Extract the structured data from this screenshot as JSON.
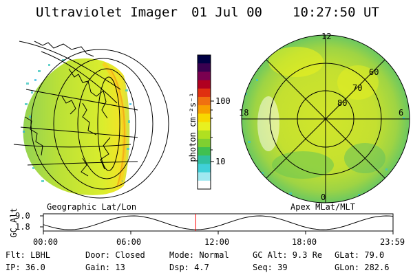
{
  "header": {
    "title": "Ultraviolet Imager",
    "date": "01 Jul 00",
    "time": "10:27:50 UT"
  },
  "left_panel": {
    "caption": "Geographic Lat/Lon"
  },
  "right_panel": {
    "caption": "Apex MLat/MLT",
    "mlt_labels": {
      "top": "12",
      "left": "18",
      "right": "6",
      "bottom": "0"
    },
    "mlat_labels": [
      "60",
      "70",
      "80"
    ]
  },
  "colorbar": {
    "unit_label": "photon cm⁻²s⁻¹",
    "tick_labels": [
      "100",
      "10"
    ],
    "colors": [
      "#000044",
      "#3a0050",
      "#7a0050",
      "#b00020",
      "#e03010",
      "#f07010",
      "#f8a000",
      "#f8d800",
      "#e8f020",
      "#b0e020",
      "#80d030",
      "#40c050",
      "#30c0a0",
      "#40d0d8",
      "#a0e8f0",
      "#ffffff"
    ]
  },
  "altitude_plot": {
    "y_label": "GC Alt",
    "y_ticks": [
      "9.0",
      "1.8"
    ],
    "x_ticks": [
      "00:00",
      "06:00",
      "12:00",
      "18:00",
      "23:59"
    ],
    "current_time_hours": 10.46,
    "marker_color": "#ff0000"
  },
  "info": {
    "row1": {
      "filter": "Flt: LBHL",
      "door": "Door: Closed",
      "mode": "Mode: Normal",
      "gc_alt": "GC Alt: 9.3 Re",
      "glat": "GLat:  79.0"
    },
    "row2": {
      "ip": "IP: 36.0",
      "gain": "Gain: 13",
      "dsp": "Dsp:    4.7",
      "seq": "Seq: 39",
      "glon": "GLon: 282.6"
    }
  }
}
